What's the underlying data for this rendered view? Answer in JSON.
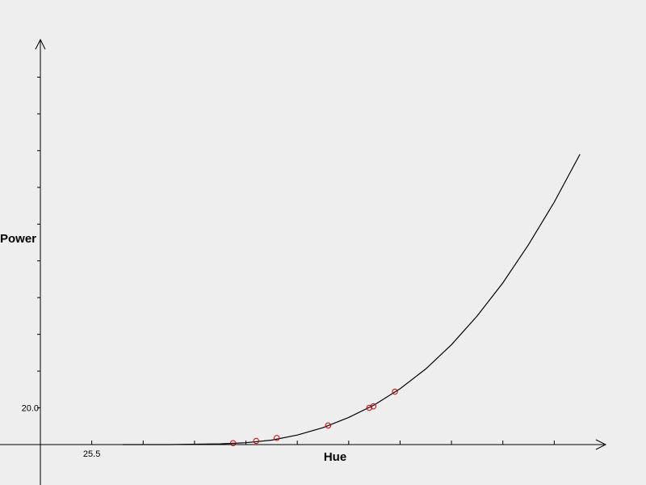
{
  "chart_data": {
    "type": "scatter",
    "title": "",
    "xlabel": "Hue",
    "ylabel": "Power",
    "x_tick_labels": [
      {
        "value": 25.5,
        "text": "25.5"
      }
    ],
    "y_tick_labels": [
      {
        "value": 20.0,
        "text": "20.0"
      }
    ],
    "xlim": [
      24.5,
      35.5
    ],
    "ylim": [
      15.0,
      70.0
    ],
    "x_minor_step": 1.0,
    "y_minor_step": 5.0,
    "curve": {
      "x": [
        26.1,
        27.0,
        28.0,
        28.5,
        29.0,
        29.5,
        30.0,
        30.5,
        31.0,
        31.5,
        32.0,
        32.5,
        33.0,
        33.5,
        34.0,
        34.5,
        35.0
      ],
      "y": [
        15.0,
        15.0,
        15.1,
        15.25,
        15.6,
        16.3,
        17.3,
        18.7,
        20.4,
        22.6,
        25.3,
        28.6,
        32.5,
        37.0,
        42.2,
        48.0,
        54.5
      ]
    },
    "points": {
      "x": [
        28.25,
        28.7,
        29.1,
        30.1,
        30.9,
        30.98,
        31.4
      ],
      "y": [
        15.2,
        15.5,
        15.9,
        17.6,
        20.0,
        20.2,
        22.2
      ]
    },
    "colors": {
      "background": "#eeeeee",
      "axis": "#000000",
      "curve": "#000000",
      "points": "#cc0000"
    }
  }
}
